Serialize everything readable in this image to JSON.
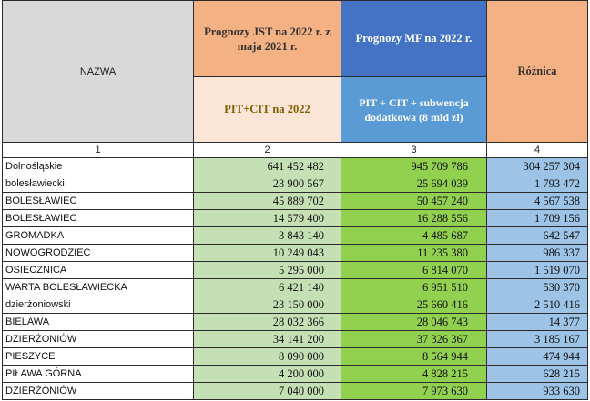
{
  "headers": {
    "name": "NAZWA",
    "jst_title": "Prognozy JST na 2022 r. z maja 2021 r.",
    "mf_title": "Prognozy MF na 2022 r.",
    "diff_title": "Różnica",
    "jst_sub": "PIT+CIT na 2022",
    "mf_sub": "PIT + CIT + subwencja dodatkowa (8 mld zl)"
  },
  "column_numbers": [
    "1",
    "2",
    "3",
    "4"
  ],
  "rows": [
    {
      "name": "Dolnośląskie",
      "jst": "641 452 482",
      "mf": "945 709 786",
      "diff": "304 257 304"
    },
    {
      "name": "bolesławiecki",
      "jst": "23 900 567",
      "mf": "25 694 039",
      "diff": "1 793 472"
    },
    {
      "name": "BOLESŁAWIEC",
      "jst": "45 889 702",
      "mf": "50 457 240",
      "diff": "4 567 538"
    },
    {
      "name": "BOLESŁAWIEC",
      "jst": "14 579 400",
      "mf": "16 288 556",
      "diff": "1 709 156"
    },
    {
      "name": "GROMADKA",
      "jst": "3 843 140",
      "mf": "4 485 687",
      "diff": "642 547"
    },
    {
      "name": "NOWOGRODZIEC",
      "jst": "10 249 043",
      "mf": "11 235 380",
      "diff": "986 337"
    },
    {
      "name": "OSIECZNICA",
      "jst": "5 295 000",
      "mf": "6 814 070",
      "diff": "1 519 070"
    },
    {
      "name": "WARTA BOLESŁAWIECKA",
      "jst": "6 421 140",
      "mf": "6 951 510",
      "diff": "530 370"
    },
    {
      "name": "dzierżoniowski",
      "jst": "23 150 000",
      "mf": "25 660 416",
      "diff": "2 510 416"
    },
    {
      "name": "BIELAWA",
      "jst": "28 032 366",
      "mf": "28 046 743",
      "diff": "14 377"
    },
    {
      "name": "DZIERŻONIÓW",
      "jst": "34 141 200",
      "mf": "37 326 367",
      "diff": "3 185 167"
    },
    {
      "name": "PIESZYCE",
      "jst": "8 090 000",
      "mf": "8 564 944",
      "diff": "474 944"
    },
    {
      "name": "PIŁAWA GÓRNA",
      "jst": "4 200 000",
      "mf": "4 828 215",
      "diff": "628 215"
    },
    {
      "name": "DZIERŻONIÓW",
      "jst": "7 040 000",
      "mf": "7 973 630",
      "diff": "933 630"
    }
  ]
}
